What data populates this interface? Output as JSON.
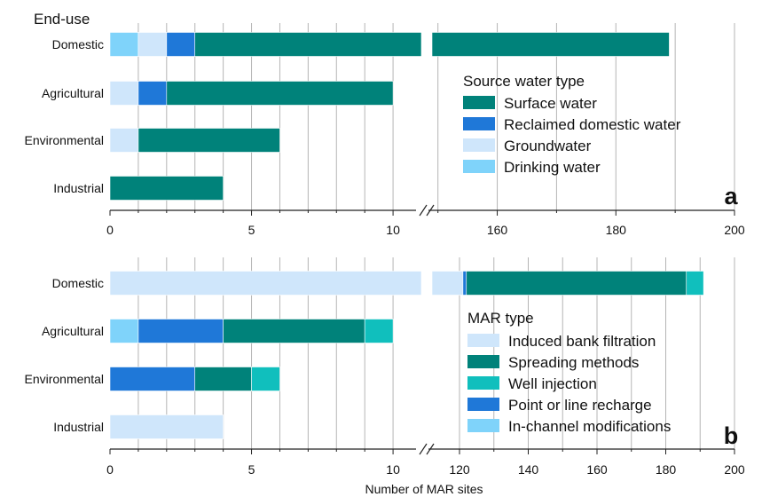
{
  "colors": {
    "surface_water": "#00827a",
    "reclaimed_domestic_water": "#1f78d8",
    "groundwater": "#cfe6fb",
    "drinking_water": "#7fd3fa",
    "induced_bank_filtration": "#cfe6fb",
    "spreading_methods": "#00827a",
    "well_injection": "#10bfbd",
    "point_or_line_recharge": "#1f78d8",
    "in_channel_modifications": "#7fd3fa",
    "grid": "#b5b5b5",
    "axis": "#222222"
  },
  "x_axis_label": "Number of MAR sites",
  "chart_data": [
    {
      "type": "bar",
      "orientation": "horizontal",
      "stacked": true,
      "panel_label": "a",
      "y_axis_title": "End-use",
      "categories": [
        "Domestic",
        "Agricultural",
        "Environmental",
        "Industrial"
      ],
      "legend_title": "Source water type",
      "legend": [
        {
          "label": "Surface water",
          "key": "surface_water"
        },
        {
          "label": "Reclaimed domestic water",
          "key": "reclaimed_domestic_water"
        },
        {
          "label": "Groundwater",
          "key": "groundwater"
        },
        {
          "label": "Drinking water",
          "key": "drinking_water"
        }
      ],
      "stack_order": [
        "drinking_water",
        "groundwater",
        "reclaimed_domestic_water",
        "surface_water"
      ],
      "series": [
        {
          "name": "Drinking water",
          "key": "drinking_water",
          "values": [
            1,
            0,
            0,
            0
          ]
        },
        {
          "name": "Groundwater",
          "key": "groundwater",
          "values": [
            1,
            1,
            1,
            0
          ]
        },
        {
          "name": "Reclaimed domestic water",
          "key": "reclaimed_domestic_water",
          "values": [
            1,
            1,
            0,
            0
          ]
        },
        {
          "name": "Surface water",
          "key": "surface_water",
          "values": [
            186,
            8,
            5,
            4
          ]
        }
      ],
      "x_segments": [
        {
          "range": [
            0,
            11
          ],
          "ticks": [
            0,
            5,
            10
          ],
          "tick_labels": [
            "0",
            "5",
            "10"
          ],
          "minor_ticks": [
            1,
            2,
            3,
            4,
            6,
            7,
            8,
            9
          ]
        },
        {
          "range": [
            149,
            200
          ],
          "ticks": [
            160,
            180,
            200
          ],
          "tick_labels": [
            "160",
            "180",
            "200"
          ],
          "minor_ticks": [
            150,
            170,
            190
          ]
        }
      ],
      "axis_break": true,
      "grid": true
    },
    {
      "type": "bar",
      "orientation": "horizontal",
      "stacked": true,
      "panel_label": "b",
      "y_axis_title": "",
      "categories": [
        "Domestic",
        "Agricultural",
        "Environmental",
        "Industrial"
      ],
      "legend_title": "MAR type",
      "legend": [
        {
          "label": "Induced bank filtration",
          "key": "induced_bank_filtration"
        },
        {
          "label": "Spreading methods",
          "key": "spreading_methods"
        },
        {
          "label": "Well injection",
          "key": "well_injection"
        },
        {
          "label": "Point or line recharge",
          "key": "point_or_line_recharge"
        },
        {
          "label": "In-channel modifications",
          "key": "in_channel_modifications"
        }
      ],
      "stack_order": [
        "in_channel_modifications",
        "induced_bank_filtration",
        "point_or_line_recharge",
        "spreading_methods",
        "well_injection"
      ],
      "series": [
        {
          "name": "In-channel modifications",
          "key": "in_channel_modifications",
          "values": [
            0,
            1,
            0,
            0
          ]
        },
        {
          "name": "Induced bank filtration",
          "key": "induced_bank_filtration",
          "values": [
            121,
            0,
            0,
            4
          ]
        },
        {
          "name": "Point or line recharge",
          "key": "point_or_line_recharge",
          "values": [
            1,
            3,
            3,
            0
          ]
        },
        {
          "name": "Spreading methods",
          "key": "spreading_methods",
          "values": [
            64,
            5,
            2,
            0
          ]
        },
        {
          "name": "Well injection",
          "key": "well_injection",
          "values": [
            5,
            1,
            1,
            0
          ]
        }
      ],
      "x_segments": [
        {
          "range": [
            0,
            11
          ],
          "ticks": [
            0,
            5,
            10
          ],
          "tick_labels": [
            "0",
            "5",
            "10"
          ],
          "minor_ticks": [
            1,
            2,
            3,
            4,
            6,
            7,
            8,
            9
          ]
        },
        {
          "range": [
            112,
            200
          ],
          "ticks": [
            120,
            140,
            160,
            180,
            200
          ],
          "tick_labels": [
            "120",
            "140",
            "160",
            "180",
            "200"
          ],
          "minor_ticks": [
            130,
            150,
            170,
            190
          ]
        }
      ],
      "axis_break": true,
      "grid": true
    }
  ]
}
